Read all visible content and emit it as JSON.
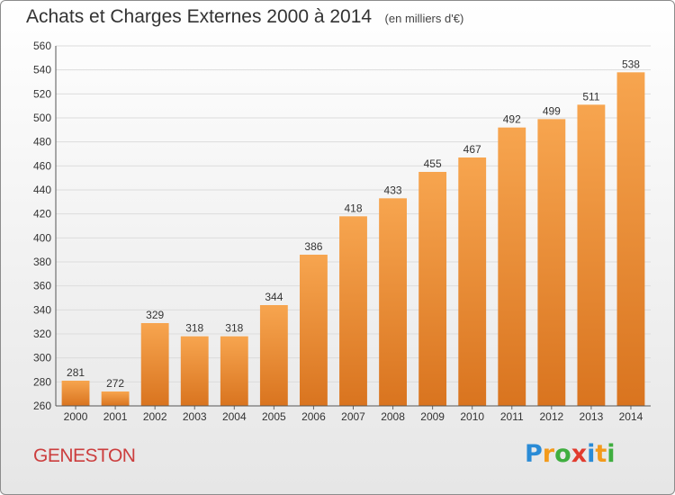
{
  "header": {
    "title": "Achats et Charges Externes 2000 à 2014",
    "subtitle": "(en milliers d'€)"
  },
  "footer": {
    "place": "GENESTON",
    "logo_text": "Proxiti"
  },
  "colors": {
    "bar_light": "#f7a54f",
    "bar_dark": "#d9741f",
    "title": "#333333",
    "place": "#cc3e3e"
  },
  "chart_data": {
    "type": "bar",
    "title": "Achats et Charges Externes 2000 à 2014",
    "subtitle": "(en milliers d'€)",
    "xlabel": "",
    "ylabel": "",
    "categories": [
      "2000",
      "2001",
      "2002",
      "2003",
      "2004",
      "2005",
      "2006",
      "2007",
      "2008",
      "2009",
      "2010",
      "2011",
      "2012",
      "2013",
      "2014"
    ],
    "values": [
      281,
      272,
      329,
      318,
      318,
      344,
      386,
      418,
      433,
      455,
      467,
      492,
      499,
      511,
      538
    ],
    "ylim": [
      260,
      560
    ],
    "yticks": [
      260,
      280,
      300,
      320,
      340,
      360,
      380,
      400,
      420,
      440,
      460,
      480,
      500,
      520,
      540,
      560
    ],
    "grid": true,
    "legend": "none"
  }
}
